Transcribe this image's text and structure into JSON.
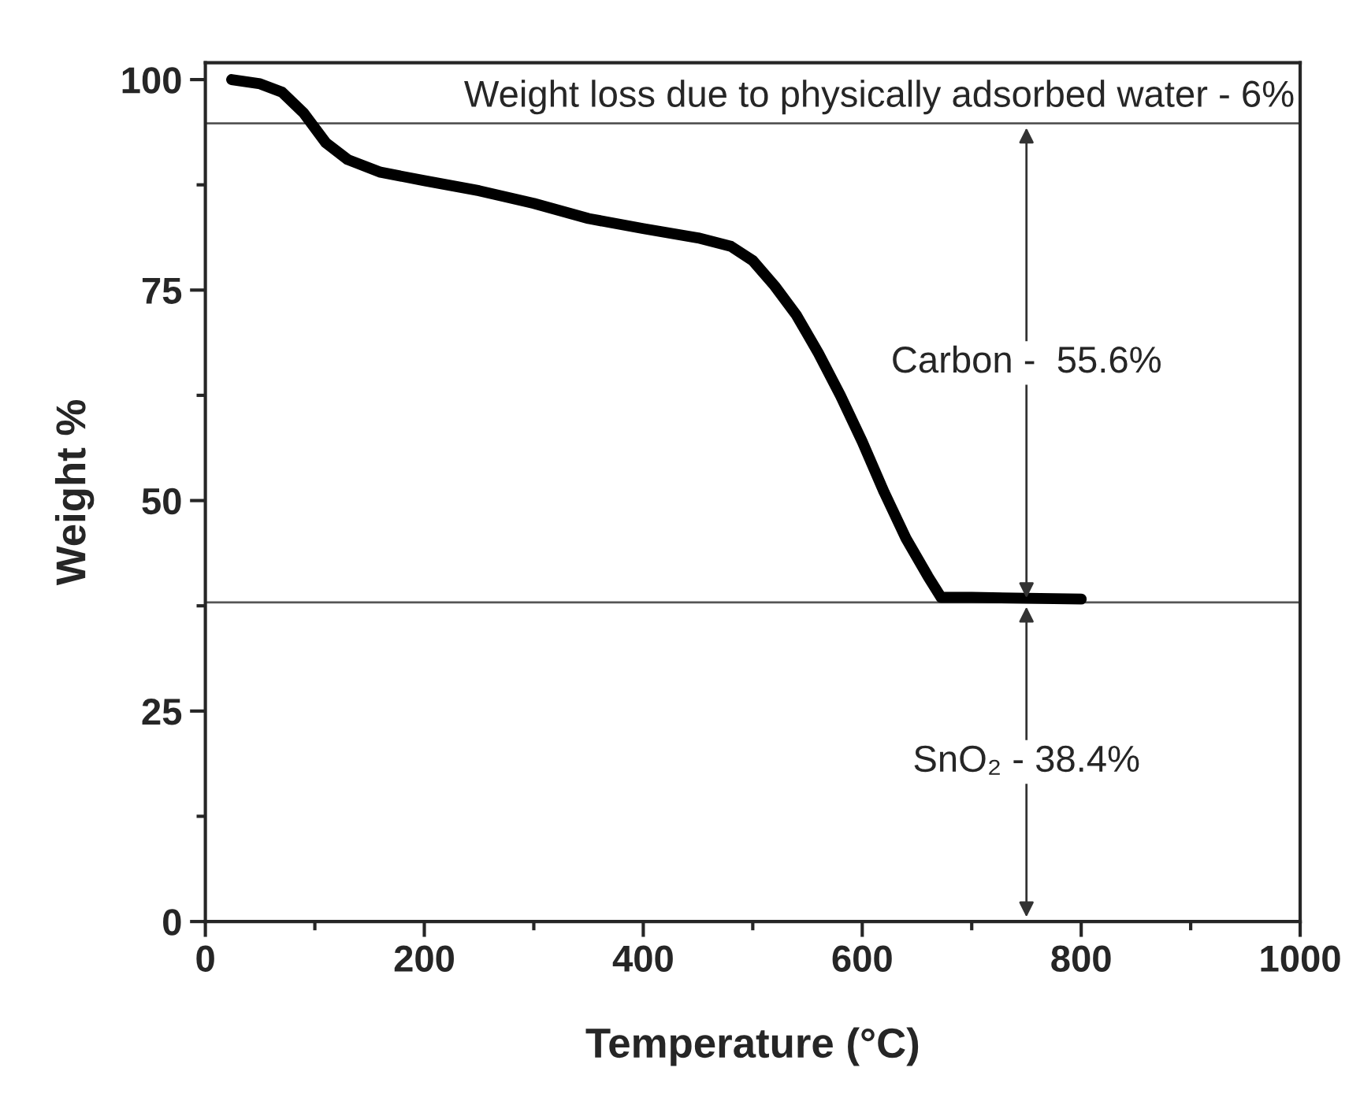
{
  "chart_data": {
    "type": "line",
    "xlabel": "Temperature (°C)",
    "ylabel": "Weight %",
    "x": [
      24,
      50,
      70,
      90,
      110,
      130,
      160,
      200,
      250,
      300,
      350,
      400,
      450,
      480,
      500,
      520,
      540,
      560,
      580,
      600,
      620,
      640,
      660,
      672,
      700,
      750,
      800
    ],
    "series": [
      {
        "color": "#000000",
        "values": [
          100,
          99.5,
          98.5,
          96,
          92.5,
          90.5,
          89,
          88,
          86.8,
          85.3,
          83.5,
          82.3,
          81.2,
          80.2,
          78.5,
          75.5,
          72,
          67.5,
          62.5,
          57,
          51,
          45.5,
          41,
          38.5,
          38.5,
          38.4,
          38.3
        ]
      }
    ],
    "xlim": [
      0,
      1000
    ],
    "xticks": [
      0,
      200,
      400,
      600,
      800,
      1000
    ],
    "ylim": [
      0,
      102
    ],
    "yticks": [
      0,
      25,
      50,
      75,
      100
    ],
    "ref_lines": [
      {
        "axis": "y",
        "value": 94.8,
        "color": "#555555"
      },
      {
        "axis": "y",
        "value": 37.9,
        "color": "#555555"
      }
    ],
    "annotations": [
      "Weight loss due to physically adsorbed water - 6%",
      {
        "text": "Carbon -  55.6%",
        "x": 750,
        "y": 37.9
      },
      "SnO₂ - 38.4%"
    ],
    "grid": false,
    "legend": false,
    "marker": "none",
    "line_style": "solid"
  }
}
